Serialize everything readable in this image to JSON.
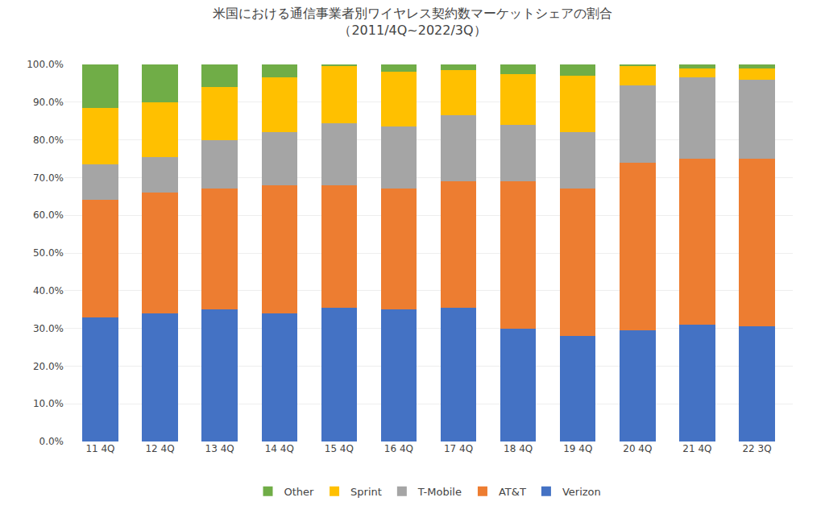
{
  "chart_data": {
    "type": "bar",
    "stacked": true,
    "title": "米国における通信事業者別ワイヤレス契約数マーケットシェアの割合\n（2011/4Q~2022/3Q）",
    "categories": [
      "11 4Q",
      "12 4Q",
      "13 4Q",
      "14 4Q",
      "15 4Q",
      "16 4Q",
      "17 4Q",
      "18 4Q",
      "19 4Q",
      "20 4Q",
      "21 4Q",
      "22 3Q"
    ],
    "series": [
      {
        "name": "Verizon",
        "color": "#4472C4",
        "values": [
          0.33,
          0.34,
          0.35,
          0.34,
          0.355,
          0.35,
          0.355,
          0.3,
          0.28,
          0.295,
          0.31,
          0.305
        ]
      },
      {
        "name": "AT&T",
        "color": "#ED7D31",
        "values": [
          0.31,
          0.32,
          0.32,
          0.34,
          0.325,
          0.32,
          0.335,
          0.39,
          0.39,
          0.445,
          0.44,
          0.445
        ]
      },
      {
        "name": "T-Mobile",
        "color": "#A5A5A5",
        "values": [
          0.095,
          0.095,
          0.13,
          0.14,
          0.165,
          0.165,
          0.175,
          0.15,
          0.15,
          0.205,
          0.215,
          0.21
        ]
      },
      {
        "name": "Sprint",
        "color": "#FFC000",
        "values": [
          0.15,
          0.145,
          0.14,
          0.145,
          0.15,
          0.145,
          0.12,
          0.135,
          0.15,
          0.05,
          0.025,
          0.03
        ]
      },
      {
        "name": "Other",
        "color": "#70AD47",
        "values": [
          0.115,
          0.1,
          0.06,
          0.035,
          0.005,
          0.02,
          0.015,
          0.025,
          0.03,
          0.005,
          0.01,
          0.01
        ]
      }
    ],
    "ylim": [
      0.0,
      1.0
    ],
    "yticks": [
      {
        "value": 0.0,
        "label": "0.0%"
      },
      {
        "value": 0.1,
        "label": "10.0%"
      },
      {
        "value": 0.2,
        "label": "20.0%"
      },
      {
        "value": 0.3,
        "label": "30.0%"
      },
      {
        "value": 0.4,
        "label": "40.0%"
      },
      {
        "value": 0.5,
        "label": "50.0%"
      },
      {
        "value": 0.6,
        "label": "60.0%"
      },
      {
        "value": 0.7,
        "label": "70.0%"
      },
      {
        "value": 0.8,
        "label": "80.0%"
      },
      {
        "value": 0.9,
        "label": "90.0%"
      },
      {
        "value": 1.0,
        "label": "100.0%"
      }
    ],
    "grid": true,
    "legend": "bottom"
  }
}
